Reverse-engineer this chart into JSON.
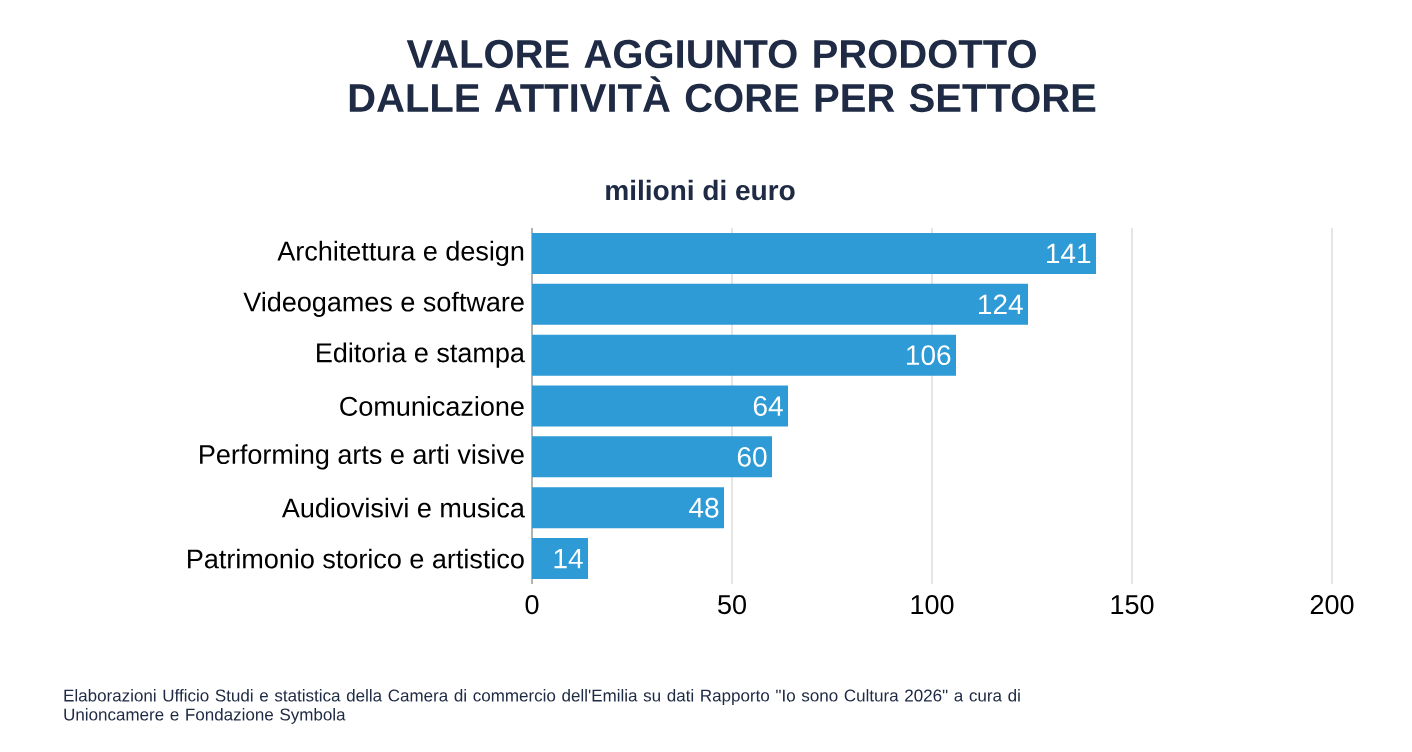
{
  "chart_data": {
    "type": "bar",
    "orientation": "horizontal",
    "title": "VALORE AGGIUNTO PRODOTTO DALLE ATTIVITÀ CORE PER SETTORE",
    "subtitle": "milioni di euro",
    "categories": [
      "Architettura e design",
      "Videogames e software",
      "Editoria e stampa",
      "Comunicazione",
      "Performing arts e arti visive",
      "Audiovisivi e musica",
      "Patrimonio storico e artistico"
    ],
    "values": [
      141,
      124,
      106,
      64,
      60,
      48,
      14
    ],
    "color": "#2e9bd6",
    "xlim": [
      0,
      200
    ],
    "xticks": [
      0,
      50,
      100,
      150,
      200
    ],
    "grid": "x",
    "data_labels": true,
    "annotations": [
      "Elaborazioni Ufficio Studi e statistica della Camera di commercio dell'Emilia su dati Rapporto \"Io sono Cultura 2026\" a cura di Unioncamere e Fondazione Symbola"
    ]
  }
}
